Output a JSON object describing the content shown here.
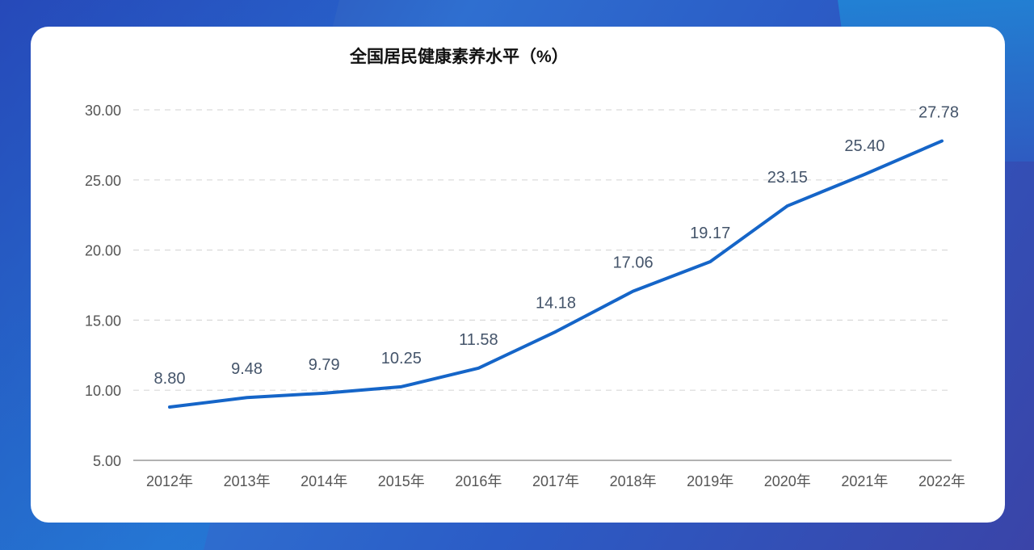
{
  "chart_data": {
    "type": "line",
    "title": "全国居民健康素养水平（%）",
    "xlabel": "",
    "ylabel": "",
    "categories": [
      "2012年",
      "2013年",
      "2014年",
      "2015年",
      "2016年",
      "2017年",
      "2018年",
      "2019年",
      "2020年",
      "2021年",
      "2022年"
    ],
    "values": [
      8.8,
      9.48,
      9.79,
      10.25,
      11.58,
      14.18,
      17.06,
      19.17,
      23.15,
      25.4,
      27.78
    ],
    "data_labels": [
      "8.80",
      "9.48",
      "9.79",
      "10.25",
      "11.58",
      "14.18",
      "17.06",
      "19.17",
      "23.15",
      "25.40",
      "27.78"
    ],
    "ylim": [
      5,
      30
    ],
    "yticks": [
      "5.00",
      "10.00",
      "15.00",
      "20.00",
      "25.00",
      "30.00"
    ],
    "grid": true,
    "line_color": "#1565c8"
  }
}
